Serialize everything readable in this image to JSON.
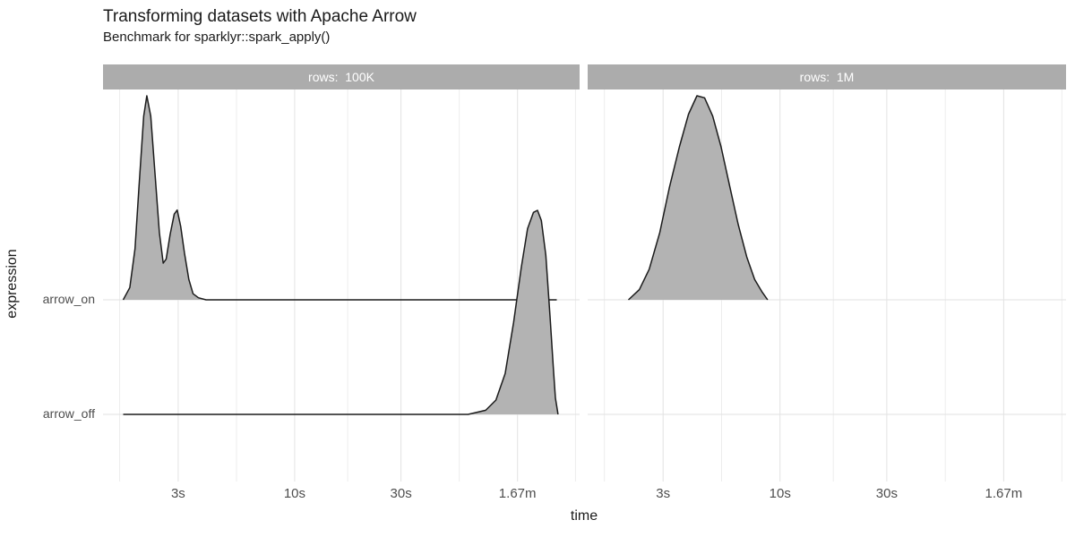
{
  "chart_data": {
    "type": "area",
    "subtype": "density-ridgeline",
    "title": "Transforming datasets with Apache Arrow",
    "subtitle": "Benchmark for sparklyr::spark_apply()",
    "xlabel": "time",
    "ylabel": "expression",
    "x_scale": "log10-time-seconds",
    "x_domain_seconds": [
      1.38,
      190
    ],
    "grid": "on",
    "legend": "none",
    "x_axis": {
      "major_ticks": [
        {
          "seconds": 3,
          "label": "3s"
        },
        {
          "seconds": 10,
          "label": "10s"
        },
        {
          "seconds": 30,
          "label": "30s"
        },
        {
          "seconds": 100,
          "label": "1.67m"
        }
      ],
      "minor_ticks_seconds": [
        1.64,
        5.48,
        17.3,
        54.8,
        182
      ]
    },
    "y_axis": {
      "categories_top_to_bottom": [
        "arrow_on",
        "arrow_off"
      ]
    },
    "facets": [
      {
        "label": "rows:  100K",
        "series": [
          {
            "name": "arrow_on",
            "peak_seconds": [
              2.17,
              2.97
            ],
            "points_t_h": [
              [
                1.7,
                0
              ],
              [
                1.82,
                0.06
              ],
              [
                1.92,
                0.25
              ],
              [
                2.0,
                0.55
              ],
              [
                2.1,
                0.9
              ],
              [
                2.17,
                1.0
              ],
              [
                2.26,
                0.9
              ],
              [
                2.36,
                0.62
              ],
              [
                2.47,
                0.33
              ],
              [
                2.57,
                0.18
              ],
              [
                2.65,
                0.2
              ],
              [
                2.76,
                0.32
              ],
              [
                2.88,
                0.42
              ],
              [
                2.97,
                0.44
              ],
              [
                3.08,
                0.36
              ],
              [
                3.2,
                0.23
              ],
              [
                3.35,
                0.1
              ],
              [
                3.5,
                0.03
              ],
              [
                3.7,
                0.01
              ],
              [
                4.0,
                0
              ],
              [
                150,
                0
              ]
            ]
          },
          {
            "name": "arrow_off",
            "peak_seconds": [
              123
            ],
            "points_t_h": [
              [
                1.7,
                0
              ],
              [
                30,
                0
              ],
              [
                60,
                0
              ],
              [
                72,
                0.02
              ],
              [
                80,
                0.07
              ],
              [
                88,
                0.2
              ],
              [
                96,
                0.45
              ],
              [
                104,
                0.72
              ],
              [
                111,
                0.91
              ],
              [
                118,
                0.99
              ],
              [
                123,
                1.0
              ],
              [
                128,
                0.95
              ],
              [
                134,
                0.78
              ],
              [
                140,
                0.48
              ],
              [
                145,
                0.22
              ],
              [
                148,
                0.08
              ],
              [
                151,
                0.02
              ],
              [
                152,
                0
              ]
            ]
          }
        ]
      },
      {
        "label": "rows:  1M",
        "series": [
          {
            "name": "arrow_on",
            "peak_seconds": [
              4.25
            ],
            "points_t_h": [
              [
                2.1,
                0
              ],
              [
                2.35,
                0.05
              ],
              [
                2.6,
                0.15
              ],
              [
                2.9,
                0.33
              ],
              [
                3.2,
                0.55
              ],
              [
                3.55,
                0.75
              ],
              [
                3.9,
                0.91
              ],
              [
                4.25,
                1.0
              ],
              [
                4.6,
                0.99
              ],
              [
                5.0,
                0.9
              ],
              [
                5.45,
                0.75
              ],
              [
                5.95,
                0.56
              ],
              [
                6.5,
                0.37
              ],
              [
                7.1,
                0.21
              ],
              [
                7.7,
                0.1
              ],
              [
                8.3,
                0.04
              ],
              [
                8.8,
                0
              ]
            ]
          }
        ]
      }
    ]
  },
  "colors": {
    "background": "#ffffff",
    "strip_bg": "#acacac",
    "strip_text": "#ffffff",
    "density_fill": "#b3b3b3",
    "density_stroke": "#1b1b1b",
    "grid_major": "#e2e2e2",
    "grid_minor": "#ededed",
    "axis_text": "#4d4d4d",
    "title_text": "#1a1a1a"
  }
}
